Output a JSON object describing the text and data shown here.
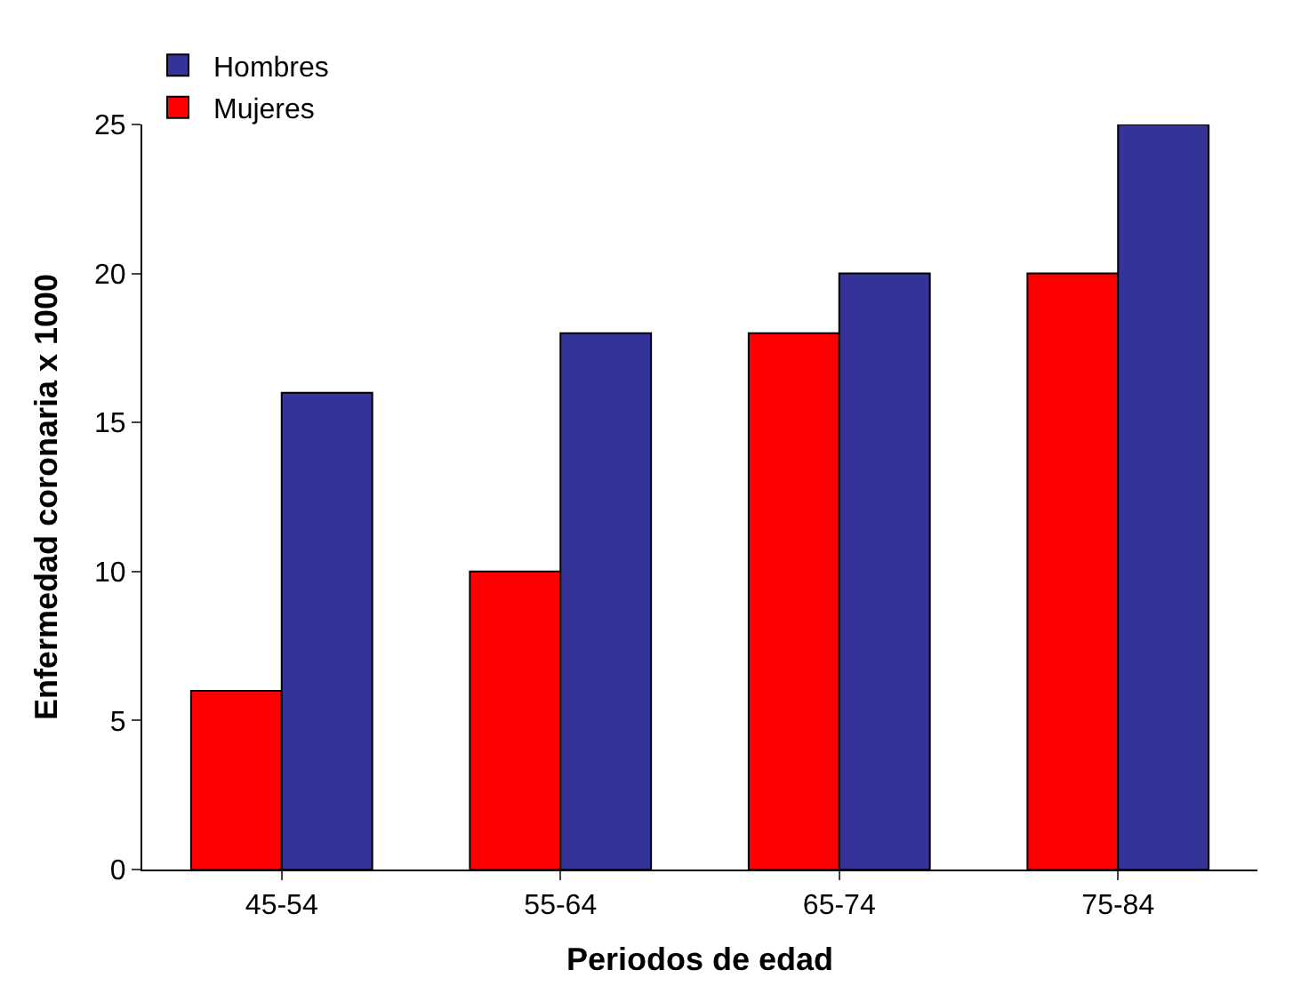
{
  "chart_data": {
    "type": "bar",
    "xlabel": "Periodos de edad",
    "ylabel": "Enfermedad coronaria x 1000",
    "categories": [
      "45-54",
      "55-64",
      "65-74",
      "75-84"
    ],
    "series": [
      {
        "name": "Mujeres",
        "color": "#ff0000",
        "values": [
          6,
          10,
          18,
          20
        ]
      },
      {
        "name": "Hombres",
        "color": "#333399",
        "values": [
          16,
          18,
          20,
          25
        ]
      }
    ],
    "ylim": [
      0,
      25
    ],
    "yticks": [
      0,
      5,
      10,
      15,
      20,
      25
    ],
    "grid": false,
    "legend": "top left"
  }
}
